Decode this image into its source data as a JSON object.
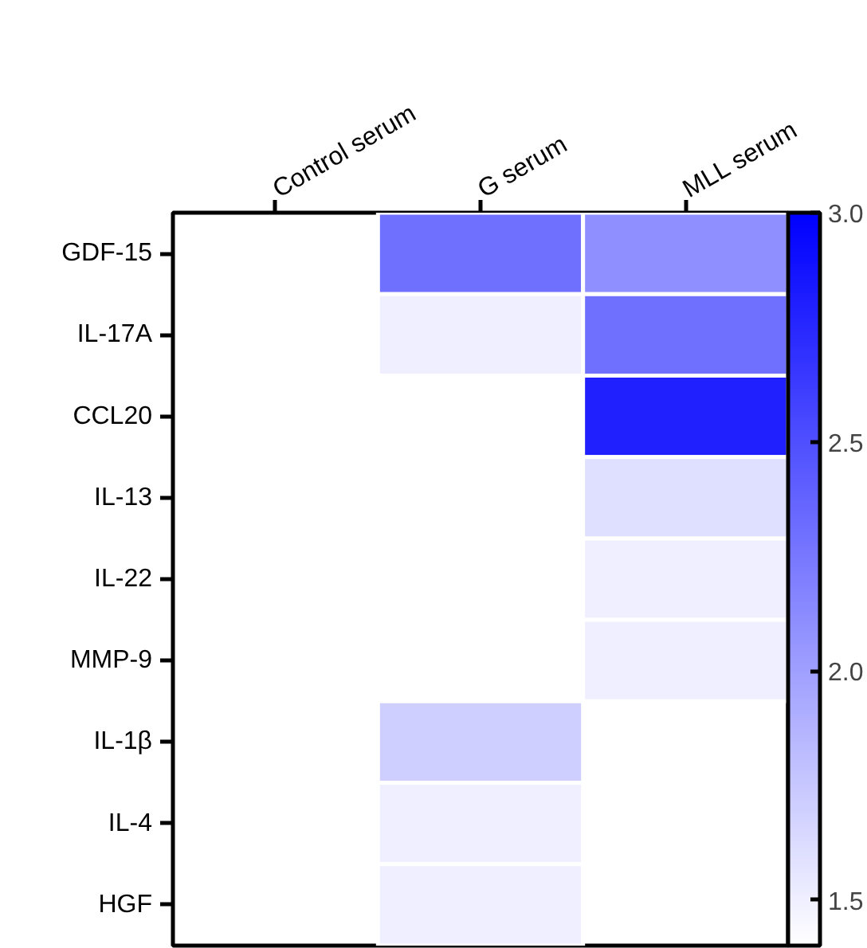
{
  "chart_data": {
    "type": "heatmap",
    "categories": [
      "Control serum",
      "G serum",
      "MLL serum"
    ],
    "y_categories": [
      "GDF-15",
      "IL-17A",
      "CCL20",
      "IL-13",
      "IL-22",
      "MMP-9",
      "IL-1β",
      "IL-4",
      "HGF"
    ],
    "cells": [
      [
        null,
        2.3,
        2.1
      ],
      [
        null,
        1.5,
        2.3
      ],
      [
        null,
        null,
        2.8
      ],
      [
        null,
        null,
        1.6
      ],
      [
        null,
        null,
        1.5
      ],
      [
        null,
        null,
        1.5
      ],
      [
        null,
        1.7,
        null
      ],
      [
        null,
        1.5,
        null
      ],
      [
        null,
        1.5,
        null
      ]
    ],
    "clim": [
      1.4,
      3.0
    ],
    "cticks": [
      {
        "value": 1.5,
        "label": "1.5"
      },
      {
        "value": 2.0,
        "label": "2.0"
      },
      {
        "value": 2.5,
        "label": "2.5"
      },
      {
        "value": 3.0,
        "label": "3.0"
      }
    ]
  }
}
